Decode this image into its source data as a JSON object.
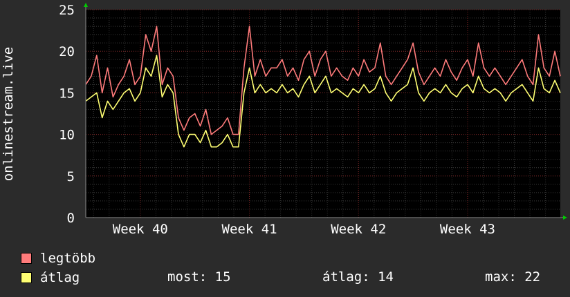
{
  "chart_data": {
    "type": "line",
    "ylabel": "onlinestream.live",
    "ylim": [
      0,
      25
    ],
    "yticks": [
      0,
      5,
      10,
      15,
      20,
      25
    ],
    "x_tick_labels": [
      "Week 40",
      "Week 41",
      "Week 42",
      "Week 43"
    ],
    "x_range_weeks": [
      39.5,
      43.85
    ],
    "grid": true,
    "legend_placement": "bottom-left",
    "colors": {
      "background": "#2b2b2b",
      "plot_background": "#000000",
      "grid_minor": "#3a3a3a",
      "grid_major": "#7a2020",
      "max_series": "#ff7b7b",
      "avg_series": "#ffff73",
      "axis_arrow": "#00cc00"
    },
    "series": [
      {
        "name": "legtöbb",
        "color": "#ff7b7b",
        "x": [
          39.5,
          39.55,
          39.6,
          39.65,
          39.7,
          39.75,
          39.8,
          39.85,
          39.9,
          39.95,
          40.0,
          40.05,
          40.1,
          40.15,
          40.2,
          40.25,
          40.3,
          40.35,
          40.4,
          40.45,
          40.5,
          40.55,
          40.6,
          40.65,
          40.7,
          40.75,
          40.8,
          40.85,
          40.9,
          40.95,
          41.0,
          41.05,
          41.1,
          41.15,
          41.2,
          41.25,
          41.3,
          41.35,
          41.4,
          41.45,
          41.5,
          41.55,
          41.6,
          41.65,
          41.7,
          41.75,
          41.8,
          41.85,
          41.9,
          41.95,
          42.0,
          42.05,
          42.1,
          42.15,
          42.2,
          42.25,
          42.3,
          42.35,
          42.4,
          42.45,
          42.5,
          42.55,
          42.6,
          42.65,
          42.7,
          42.75,
          42.8,
          42.85,
          42.9,
          42.95,
          43.0,
          43.05,
          43.1,
          43.15,
          43.2,
          43.25,
          43.3,
          43.35,
          43.4,
          43.45,
          43.5,
          43.55,
          43.6,
          43.65,
          43.7,
          43.75,
          43.8,
          43.85
        ],
        "values": [
          16,
          17,
          19.5,
          15,
          18,
          14.5,
          16,
          17,
          19,
          16,
          17,
          22,
          20,
          23,
          16,
          18,
          17,
          12,
          10.5,
          12,
          12.5,
          11,
          13,
          10,
          10.5,
          11,
          12,
          10,
          10,
          18,
          23,
          17,
          19,
          17,
          18,
          18,
          19,
          17,
          18,
          16.5,
          19,
          20,
          17,
          19,
          20,
          17,
          18,
          17,
          16.5,
          18,
          17,
          19,
          17.5,
          18,
          21,
          17,
          16,
          17,
          18,
          19,
          21,
          17.5,
          16,
          17,
          18,
          17,
          19,
          17.5,
          16.5,
          18,
          19,
          17,
          21,
          18,
          17,
          18,
          17,
          16,
          17,
          18,
          19,
          17,
          16,
          22,
          18,
          17,
          20,
          17
        ]
      },
      {
        "name": "átlag",
        "color": "#ffff73",
        "x": [
          39.5,
          39.55,
          39.6,
          39.65,
          39.7,
          39.75,
          39.8,
          39.85,
          39.9,
          39.95,
          40.0,
          40.05,
          40.1,
          40.15,
          40.2,
          40.25,
          40.3,
          40.35,
          40.4,
          40.45,
          40.5,
          40.55,
          40.6,
          40.65,
          40.7,
          40.75,
          40.8,
          40.85,
          40.9,
          40.95,
          41.0,
          41.05,
          41.1,
          41.15,
          41.2,
          41.25,
          41.3,
          41.35,
          41.4,
          41.45,
          41.5,
          41.55,
          41.6,
          41.65,
          41.7,
          41.75,
          41.8,
          41.85,
          41.9,
          41.95,
          42.0,
          42.05,
          42.1,
          42.15,
          42.2,
          42.25,
          42.3,
          42.35,
          42.4,
          42.45,
          42.5,
          42.55,
          42.6,
          42.65,
          42.7,
          42.75,
          42.8,
          42.85,
          42.9,
          42.95,
          43.0,
          43.05,
          43.1,
          43.15,
          43.2,
          43.25,
          43.3,
          43.35,
          43.4,
          43.45,
          43.5,
          43.55,
          43.6,
          43.65,
          43.7,
          43.75,
          43.8,
          43.85
        ],
        "values": [
          14,
          14.5,
          15,
          12,
          14,
          13,
          14,
          15,
          15.5,
          14,
          15,
          18,
          17,
          19.5,
          14.5,
          16,
          15,
          10,
          8.5,
          10,
          10,
          9,
          10.5,
          8.5,
          8.5,
          9,
          10,
          8.5,
          8.5,
          15,
          18,
          15,
          16,
          15,
          15.5,
          15,
          16,
          15,
          15.5,
          14.5,
          16,
          17,
          15,
          16,
          17,
          15,
          15.5,
          15,
          14.5,
          15.5,
          15,
          16,
          15,
          15.5,
          17,
          15,
          14,
          15,
          15.5,
          16,
          18,
          15,
          14,
          15,
          15.5,
          15,
          16,
          15,
          14.5,
          15.5,
          16,
          15,
          17,
          15.5,
          15,
          15.5,
          15,
          14,
          15,
          15.5,
          16,
          15,
          14,
          18,
          15.5,
          15,
          16.5,
          15
        ]
      }
    ]
  },
  "legend": {
    "max_label": "legtöbb",
    "avg_label": "átlag"
  },
  "stats": {
    "now_label": "most:",
    "now_value": "15",
    "avg_label": "átlag:",
    "avg_value": "14",
    "max_label": "max:",
    "max_value": "22"
  }
}
